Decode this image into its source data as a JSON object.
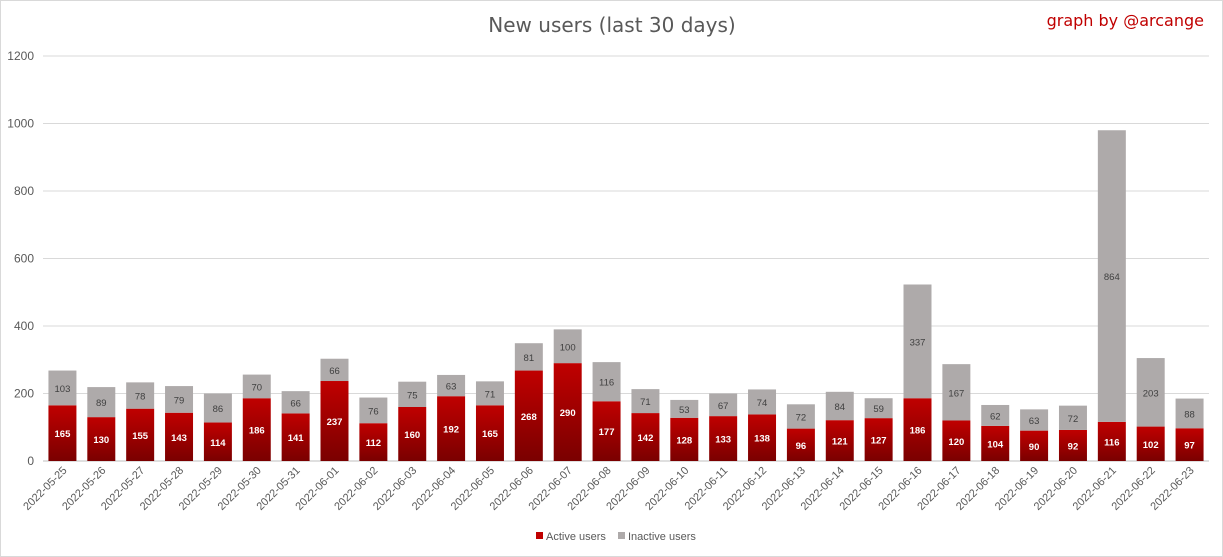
{
  "chart_data": {
    "type": "bar",
    "stacked": true,
    "title": "New users (last 30 days)",
    "credit": "graph by @arcange",
    "xlabel": "",
    "ylabel": "",
    "ylim": [
      0,
      1200
    ],
    "yticks": [
      0,
      200,
      400,
      600,
      800,
      1000,
      1200
    ],
    "grid": true,
    "legend_position": "bottom",
    "categories": [
      "2022-05-25",
      "2022-05-26",
      "2022-05-27",
      "2022-05-28",
      "2022-05-29",
      "2022-05-30",
      "2022-05-31",
      "2022-06-01",
      "2022-06-02",
      "2022-06-03",
      "2022-06-04",
      "2022-06-05",
      "2022-06-06",
      "2022-06-07",
      "2022-06-08",
      "2022-06-09",
      "2022-06-10",
      "2022-06-11",
      "2022-06-12",
      "2022-06-13",
      "2022-06-14",
      "2022-06-15",
      "2022-06-16",
      "2022-06-17",
      "2022-06-18",
      "2022-06-19",
      "2022-06-20",
      "2022-06-21",
      "2022-06-22",
      "2022-06-23"
    ],
    "series": [
      {
        "name": "Active users",
        "color": "#c00000",
        "color_dark": "#7a0000",
        "values": [
          165,
          130,
          155,
          143,
          114,
          186,
          141,
          237,
          112,
          160,
          192,
          165,
          268,
          290,
          177,
          142,
          128,
          133,
          138,
          96,
          121,
          127,
          186,
          120,
          104,
          90,
          92,
          116,
          102,
          97
        ]
      },
      {
        "name": "Inactive users",
        "color": "#aeaaaa",
        "values": [
          103,
          89,
          78,
          79,
          86,
          70,
          66,
          66,
          76,
          75,
          63,
          71,
          81,
          100,
          116,
          71,
          53,
          67,
          74,
          72,
          84,
          59,
          337,
          167,
          62,
          63,
          72,
          864,
          203,
          88
        ]
      }
    ]
  }
}
